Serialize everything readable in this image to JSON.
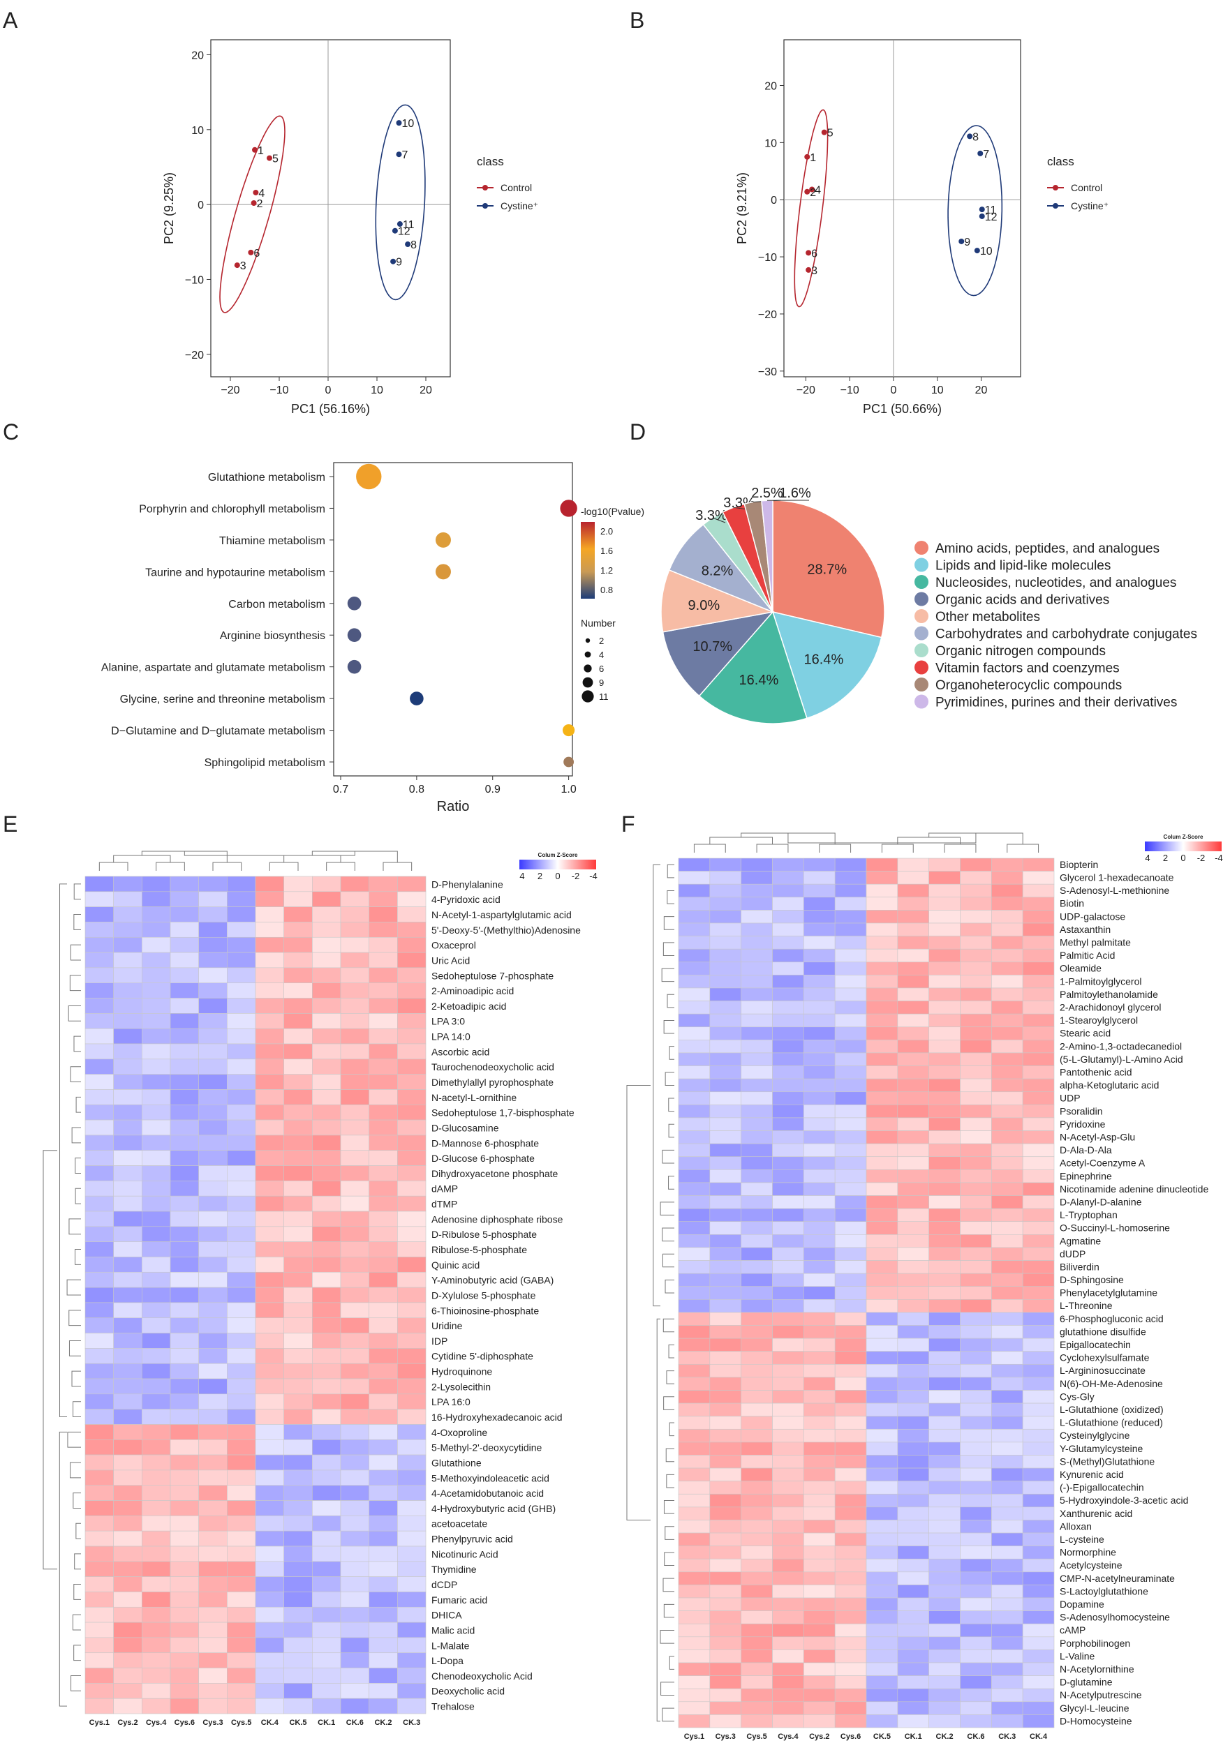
{
  "panels": {
    "A": {
      "label": "A",
      "xlabel": "PC1 (56.16%)",
      "ylabel": "PC2 (9.25%)",
      "xlim": [
        -24,
        25
      ],
      "ylim": [
        -23,
        22
      ],
      "xticks": [
        -20,
        -10,
        0,
        10,
        20
      ],
      "yticks": [
        -20,
        -10,
        0,
        10,
        20
      ],
      "legend_title": "class",
      "legend": [
        "Control",
        "Cystine⁺"
      ],
      "points": [
        {
          "label": "1",
          "group": "Control",
          "x": -15,
          "y": 7.3
        },
        {
          "label": "5",
          "group": "Control",
          "x": -12,
          "y": 6.2
        },
        {
          "label": "4",
          "group": "Control",
          "x": -14.8,
          "y": 1.6
        },
        {
          "label": "2",
          "group": "Control",
          "x": -15.2,
          "y": 0.2
        },
        {
          "label": "6",
          "group": "Control",
          "x": -15.8,
          "y": -6.4
        },
        {
          "label": "3",
          "group": "Control",
          "x": -18.6,
          "y": -8.1
        },
        {
          "label": "10",
          "group": "Cystine⁺",
          "x": 14.5,
          "y": 10.9
        },
        {
          "label": "7",
          "group": "Cystine⁺",
          "x": 14.5,
          "y": 6.7
        },
        {
          "label": "11",
          "group": "Cystine⁺",
          "x": 14.7,
          "y": -2.6
        },
        {
          "label": "12",
          "group": "Cystine⁺",
          "x": 13.7,
          "y": -3.5
        },
        {
          "label": "8",
          "group": "Cystine⁺",
          "x": 16.3,
          "y": -5.3
        },
        {
          "label": "9",
          "group": "Cystine⁺",
          "x": 13.3,
          "y": -7.6
        }
      ],
      "ellipses": [
        {
          "group": "Control",
          "cx": -15.5,
          "cy": -1.3,
          "rx": 22,
          "ry": 3.6,
          "angle": 74
        },
        {
          "group": "Cystine⁺",
          "cx": 14.8,
          "cy": 0.3,
          "rx": 21,
          "ry": 5.2,
          "angle": 87
        }
      ]
    },
    "B": {
      "label": "B",
      "xlabel": "PC1 (50.66%)",
      "ylabel": "PC2 (9.21%)",
      "xlim": [
        -25,
        29
      ],
      "ylim": [
        -31,
        28
      ],
      "xticks": [
        -20,
        -10,
        0,
        10,
        20
      ],
      "yticks": [
        -30,
        -20,
        -10,
        0,
        10,
        20
      ],
      "legend_title": "class",
      "legend": [
        "Control",
        "Cystine⁺"
      ],
      "points": [
        {
          "label": "5",
          "group": "Control",
          "x": -15.8,
          "y": 11.8
        },
        {
          "label": "1",
          "group": "Control",
          "x": -19.7,
          "y": 7.5
        },
        {
          "label": "4",
          "group": "Control",
          "x": -18.6,
          "y": 1.8
        },
        {
          "label": "2",
          "group": "Control",
          "x": -19.7,
          "y": 1.4
        },
        {
          "label": "6",
          "group": "Control",
          "x": -19.4,
          "y": -9.3
        },
        {
          "label": "3",
          "group": "Control",
          "x": -19.4,
          "y": -12.3
        },
        {
          "label": "8",
          "group": "Cystine⁺",
          "x": 17.4,
          "y": 11.1
        },
        {
          "label": "7",
          "group": "Cystine⁺",
          "x": 19.8,
          "y": 8.1
        },
        {
          "label": "11",
          "group": "Cystine⁺",
          "x": 20.2,
          "y": -1.7
        },
        {
          "label": "12",
          "group": "Cystine⁺",
          "x": 20.2,
          "y": -2.9
        },
        {
          "label": "9",
          "group": "Cystine⁺",
          "x": 15.5,
          "y": -7.3
        },
        {
          "label": "10",
          "group": "Cystine⁺",
          "x": 19.1,
          "y": -8.9
        }
      ],
      "ellipses": [
        {
          "group": "Control",
          "cx": -18.8,
          "cy": -1.5,
          "rx": 28,
          "ry": 3.2,
          "angle": 83
        },
        {
          "group": "Cystine⁺",
          "cx": 18.6,
          "cy": -1.9,
          "rx": 24,
          "ry": 7.6,
          "angle": 89
        }
      ]
    },
    "C": {
      "label": "C",
      "xlabel": "Ratio",
      "xlim": [
        0.7,
        1.0
      ],
      "xticks": [
        "0.7",
        "0.8",
        "0.9",
        "1.0"
      ],
      "colorbar_title": "-log10(Pvalue)",
      "colorbar_ticks": [
        "2.0",
        "1.6",
        "1.2",
        "0.8"
      ],
      "size_title": "Number",
      "size_ticks": [
        "2",
        "4",
        "6",
        "9",
        "11"
      ],
      "pathways": [
        {
          "name": "Glutathione metabolism",
          "ratio": 0.737,
          "number": 11,
          "color": "#f0a02a"
        },
        {
          "name": "Porphyrin and chlorophyll metabolism",
          "ratio": 1.0,
          "number": 6,
          "color": "#b8232e"
        },
        {
          "name": "Thiamine metabolism",
          "ratio": 0.835,
          "number": 5,
          "color": "#dd9d3a"
        },
        {
          "name": "Taurine and hypotaurine metabolism",
          "ratio": 0.835,
          "number": 5,
          "color": "#d9973b"
        },
        {
          "name": "Carbon metabolism",
          "ratio": 0.718,
          "number": 4,
          "color": "#4e5880"
        },
        {
          "name": "Arginine biosynthesis",
          "ratio": 0.718,
          "number": 4,
          "color": "#4e5880"
        },
        {
          "name": "Alanine, aspartate and glutamate metabolism",
          "ratio": 0.718,
          "number": 4,
          "color": "#4e5880"
        },
        {
          "name": "Glycine, serine and threonine metabolism",
          "ratio": 0.8,
          "number": 4,
          "color": "#1d3c78"
        },
        {
          "name": "D−Glutamine and D−glutamate metabolism",
          "ratio": 1.0,
          "number": 3,
          "color": "#f5b316"
        },
        {
          "name": "Sphingolipid metabolism",
          "ratio": 1.0,
          "number": 2,
          "color": "#a07a5a"
        }
      ]
    },
    "D": {
      "label": "D",
      "slices": [
        {
          "name": "Amino acids, peptides, and analogues",
          "value": 28.7,
          "label": "28.7%",
          "color": "#ef8270"
        },
        {
          "name": "Lipids and lipid-like molecules",
          "value": 16.4,
          "label": "16.4%",
          "color": "#7fd0e2"
        },
        {
          "name": "Nucleosides, nucleotides, and analogues",
          "value": 16.4,
          "label": "16.4%",
          "color": "#46b8a0"
        },
        {
          "name": "Organic acids and derivatives",
          "value": 10.7,
          "label": "10.7%",
          "color": "#6d7ba3"
        },
        {
          "name": "Other metabolites",
          "value": 9.0,
          "label": "9.0%",
          "color": "#f7bca5"
        },
        {
          "name": "Carbohydrates and carbohydrate conjugates",
          "value": 8.2,
          "label": "8.2%",
          "color": "#a4b0cf"
        },
        {
          "name": "Organic nitrogen compounds",
          "value": 3.3,
          "label": "3.3%",
          "color": "#aaddcc"
        },
        {
          "name": "Vitamin factors and coenzymes",
          "value": 3.3,
          "label": "3.3%",
          "color": "#e8403f"
        },
        {
          "name": "Organoheterocyclic compounds",
          "value": 2.5,
          "label": "2.5%",
          "color": "#a88876"
        },
        {
          "name": "Pyrimidines, purines and their derivatives",
          "value": 1.6,
          "label": "1.6%",
          "color": "#cdb8e8"
        }
      ]
    },
    "E": {
      "label": "E",
      "legend_title": "Colum Z-Score",
      "legend_ticks": [
        "4",
        "2",
        "0",
        "-2",
        "-4"
      ],
      "columns": [
        "Cys.1",
        "Cys.2",
        "Cys.4",
        "Cys.6",
        "Cys.3",
        "Cys.5",
        "CK.4",
        "CK.5",
        "CK.1",
        "CK.6",
        "CK.2",
        "CK.3"
      ],
      "up_count": 36,
      "rows": [
        "D-Phenylalanine",
        "4-Pyridoxic acid",
        "N-Acetyl-1-aspartylglutamic acid",
        "5'-Deoxy-5'-(Methylthio)Adenosine",
        "Oxaceprol",
        "Uric Acid",
        "Sedoheptulose 7-phosphate",
        "2-Aminoadipic acid",
        "2-Ketoadipic acid",
        "LPA 3:0",
        "LPA 14:0",
        "Ascorbic acid",
        "Taurochenodeoxycholic acid",
        "Dimethylallyl pyrophosphate",
        "N-acetyl-L-ornithine",
        "Sedoheptulose 1,7-bisphosphate",
        "D-Glucosamine",
        "D-Mannose 6-phosphate",
        "D-Glucose 6-phosphate",
        "Dihydroxyacetone phosphate",
        "dAMP",
        "dTMP",
        "Adenosine diphosphate ribose",
        "D-Ribulose 5-phosphate",
        "Ribulose-5-phosphate",
        "Quinic acid",
        "Y-Aminobutyric acid (GABA)",
        "D-Xylulose 5-phosphate",
        "6-Thioinosine-phosphate",
        "Uridine",
        "IDP",
        "Cytidine 5'-diphosphate",
        "Hydroquinone",
        "2-Lysolecithin",
        "LPA 16:0",
        "16-Hydroxyhexadecanoic acid",
        "4-Oxoproline",
        "5-Methyl-2'-deoxycytidine",
        "Glutathione",
        "5-Methoxyindoleacetic acid",
        "4-Acetamidobutanoic acid",
        "4-Hydroxybutyric acid (GHB)",
        "acetoacetate",
        "Phenylpyruvic acid",
        "Nicotinuric Acid",
        "Thymidine",
        "dCDP",
        "Fumaric acid",
        "DHICA",
        "Malic acid",
        "L-Malate",
        "L-Dopa",
        "Chenodeoxycholic Acid",
        "Deoxycholic acid",
        "Trehalose"
      ]
    },
    "F": {
      "label": "F",
      "legend_title": "Colum Z-Score",
      "legend_ticks": [
        "4",
        "2",
        "0",
        "-2",
        "-4"
      ],
      "columns": [
        "Cys.1",
        "Cys.3",
        "Cys.5",
        "Cys.4",
        "Cys.2",
        "Cys.6",
        "CK.5",
        "CK.1",
        "CK.2",
        "CK.6",
        "CK.3",
        "CK.4"
      ],
      "up_count": 35,
      "rows": [
        "Biopterin",
        "Glycerol 1-hexadecanoate",
        "S-Adenosyl-L-methionine",
        "Biotin",
        "UDP-galactose",
        "Astaxanthin",
        "Methyl palmitate",
        "Palmitic Acid",
        "Oleamide",
        "1-Palmitoylglycerol",
        "Palmitoylethanolamide",
        "2-Arachidonoyl glycerol",
        "1-Stearoylglycerol",
        "Stearic acid",
        "2-Amino-1,3-octadecanediol",
        "(5-L-Glutamyl)-L-Amino Acid",
        "Pantothenic acid",
        "alpha-Ketoglutaric acid",
        "UDP",
        "Psoralidin",
        "Pyridoxine",
        "N-Acetyl-Asp-Glu",
        "D-Ala-D-Ala",
        "Acetyl-Coenzyme A",
        "Epinephrine",
        "Nicotinamide adenine dinucleotide",
        "D-Alanyl-D-alanine",
        "L-Tryptophan",
        "O-Succinyl-L-homoserine",
        "Agmatine",
        "dUDP",
        "Biliverdin",
        "D-Sphingosine",
        "Phenylacetylglutamine",
        "L-Threonine",
        "6-Phosphogluconic acid",
        "glutathione disulfide",
        "Epigallocatechin",
        "Cyclohexylsulfamate",
        "L-Argininosuccinate",
        "N(6)-OH-Me-Adenosine",
        "Cys-Gly",
        "L-Glutathione (oxidized)",
        "L-Glutathione (reduced)",
        "Cysteinylglycine",
        "Y-Glutamylcysteine",
        "S-(Methyl)Glutathione",
        "Kynurenic acid",
        "(-)-Epigallocatechin",
        "5-Hydroxyindole-3-acetic acid",
        "Xanthurenic acid",
        "Alloxan",
        "L-cysteine",
        "Normorphine",
        "Acetylcysteine",
        "CMP-N-acetylneuraminate",
        "S-Lactoylglutathione",
        "Dopamine",
        "S-Adenosylhomocysteine",
        "cAMP",
        "Porphobilinogen",
        "L-Valine",
        "N-Acetylornithine",
        "D-glutamine",
        "N-Acetylputrescine",
        "Glycyl-L-leucine",
        "D-Homocysteine"
      ]
    }
  }
}
